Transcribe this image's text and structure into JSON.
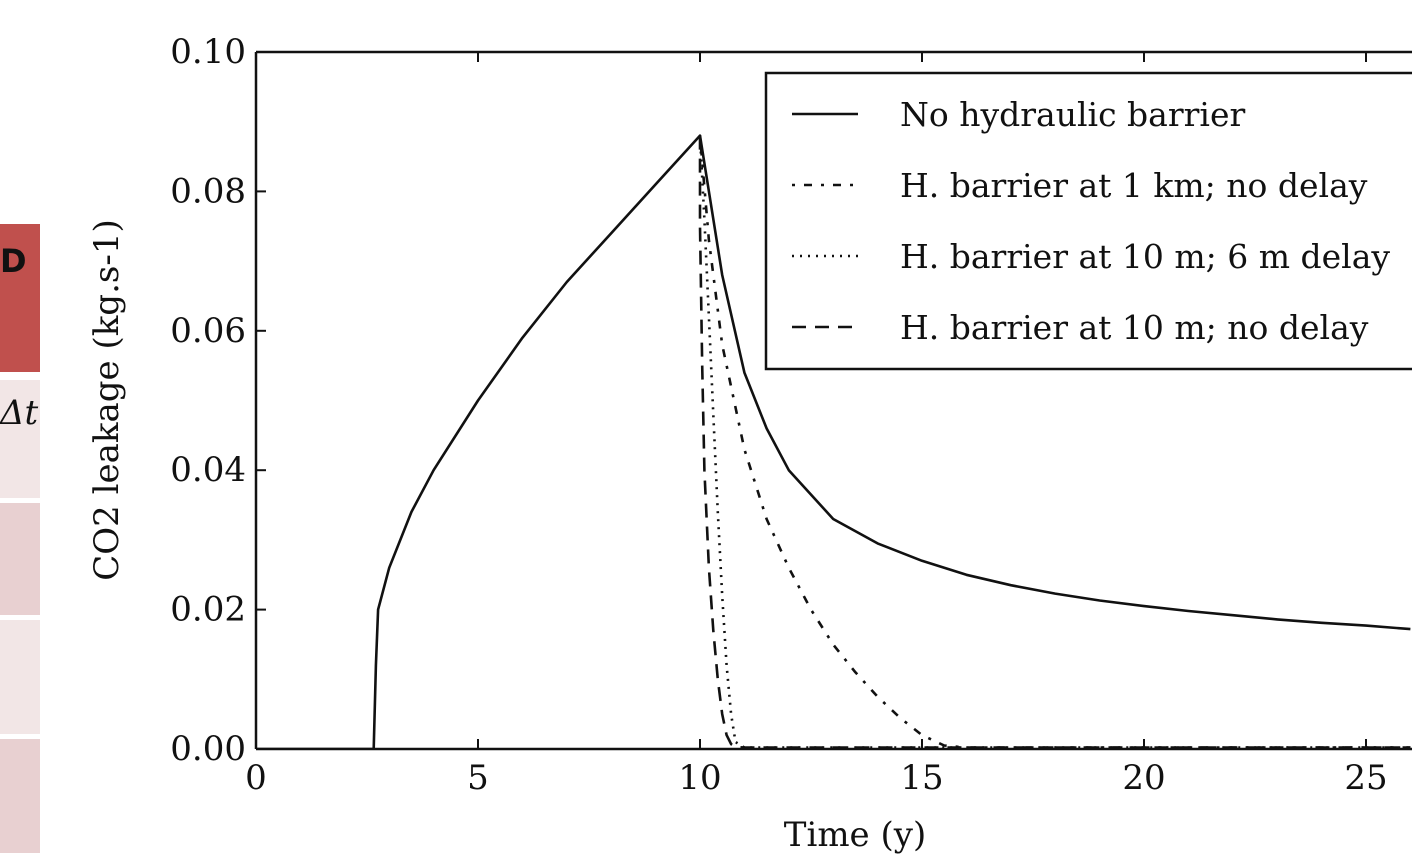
{
  "side_table": {
    "header_text": "D",
    "row_text": "Δt",
    "header_color": "#c0504d",
    "row_colors": [
      "#f2e6e6",
      "#e8d0d1",
      "#f2e6e6",
      "#e8d0d1",
      "#f2e6e6"
    ]
  },
  "chart_data": {
    "type": "line",
    "title": "",
    "xlabel": "Time (y)",
    "ylabel": "CO2 leakage (kg.s-1)",
    "xlim": [
      0,
      26
    ],
    "ylim": [
      0,
      0.1
    ],
    "xticks": [
      "0",
      "5",
      "10",
      "15",
      "20",
      "25"
    ],
    "yticks": [
      "0.00",
      "0.02",
      "0.04",
      "0.06",
      "0.08",
      "0.10"
    ],
    "grid": false,
    "legend_position": "top-right",
    "series": [
      {
        "name": "No hydraulic barrier",
        "style": "solid",
        "x": [
          0,
          2.65,
          2.7,
          2.75,
          3.0,
          3.5,
          4.0,
          5.0,
          6.0,
          7.0,
          8.0,
          9.0,
          10.0,
          10.2,
          10.5,
          11.0,
          11.5,
          12.0,
          13.0,
          14.0,
          15.0,
          16.0,
          17.0,
          18.0,
          19.0,
          20.0,
          21.0,
          22.0,
          23.0,
          24.0,
          25.0,
          26.0
        ],
        "y": [
          0,
          0,
          0.012,
          0.02,
          0.026,
          0.034,
          0.04,
          0.05,
          0.059,
          0.067,
          0.074,
          0.081,
          0.088,
          0.08,
          0.068,
          0.054,
          0.046,
          0.04,
          0.033,
          0.0295,
          0.027,
          0.025,
          0.0235,
          0.0223,
          0.0213,
          0.0205,
          0.0198,
          0.0192,
          0.0186,
          0.0181,
          0.0177,
          0.0172
        ]
      },
      {
        "name": "H. barrier at 1 km; no delay",
        "style": "dashdot",
        "x": [
          10.0,
          10.2,
          10.5,
          11.0,
          11.5,
          12.0,
          12.5,
          13.0,
          13.5,
          14.0,
          14.5,
          15.0,
          15.5,
          16.0,
          18.0,
          20.0,
          22.0,
          24.0,
          26.0
        ],
        "y": [
          0.088,
          0.073,
          0.058,
          0.043,
          0.033,
          0.026,
          0.02,
          0.015,
          0.011,
          0.0075,
          0.0045,
          0.002,
          0.0005,
          0.0002,
          0.0002,
          0.0002,
          0.0002,
          0.0002,
          0.0002
        ]
      },
      {
        "name": "H. barrier at 10 m; 6 m delay",
        "style": "dotted",
        "x": [
          10.0,
          10.1,
          10.2,
          10.3,
          10.4,
          10.5,
          10.6,
          10.7,
          10.8,
          11.0,
          12.0,
          14.0,
          18.0,
          22.0,
          26.0
        ],
        "y": [
          0.088,
          0.076,
          0.062,
          0.048,
          0.034,
          0.022,
          0.012,
          0.005,
          0.001,
          0.0002,
          0.0002,
          0.0002,
          0.0002,
          0.0002,
          0.0002
        ]
      },
      {
        "name": "H. barrier at 10 m; no delay",
        "style": "dashed",
        "x": [
          10.0,
          10.0,
          10.05,
          10.1,
          10.2,
          10.3,
          10.4,
          10.5,
          10.6,
          10.7,
          10.8,
          11.0,
          12.0,
          14.0,
          18.0,
          22.0,
          26.0
        ],
        "y": [
          0.088,
          0.075,
          0.055,
          0.04,
          0.026,
          0.017,
          0.01,
          0.005,
          0.002,
          0.0007,
          0.0003,
          0.0002,
          0.0002,
          0.0002,
          0.0002,
          0.0002,
          0.0002
        ]
      }
    ]
  }
}
